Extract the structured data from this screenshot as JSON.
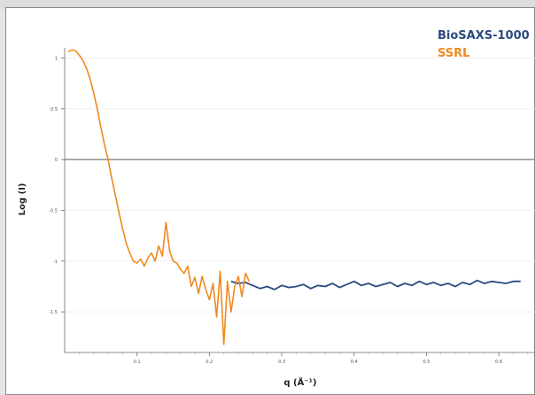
{
  "chart_data": {
    "type": "line",
    "xlabel": "q (Å⁻¹)",
    "ylabel": "Log (I)",
    "xlim": [
      0,
      0.65
    ],
    "ylim": [
      -1.9,
      1.1
    ],
    "x_ticks": [
      0.1,
      0.2,
      0.3,
      0.4,
      0.5,
      0.6
    ],
    "y_ticks": [
      1,
      0.5,
      0,
      -0.5,
      -1,
      -1.5
    ],
    "x_tick_labels": [
      "0.1",
      "0.2",
      "0.3",
      "0.4",
      "0.5",
      "0.6"
    ],
    "y_tick_labels": [
      "1",
      "0.5",
      "0",
      "-0.5",
      "-1",
      "-1.5"
    ],
    "legend_position": "top-right",
    "series": [
      {
        "name": "BioSAXS-1000",
        "color": "#2c4a7e",
        "points": [
          [
            0.23,
            -1.2
          ],
          [
            0.24,
            -1.22
          ],
          [
            0.25,
            -1.21
          ],
          [
            0.26,
            -1.24
          ],
          [
            0.27,
            -1.27
          ],
          [
            0.28,
            -1.25
          ],
          [
            0.29,
            -1.28
          ],
          [
            0.3,
            -1.24
          ],
          [
            0.31,
            -1.26
          ],
          [
            0.32,
            -1.25
          ],
          [
            0.33,
            -1.23
          ],
          [
            0.34,
            -1.27
          ],
          [
            0.35,
            -1.24
          ],
          [
            0.36,
            -1.25
          ],
          [
            0.37,
            -1.22
          ],
          [
            0.38,
            -1.26
          ],
          [
            0.39,
            -1.23
          ],
          [
            0.4,
            -1.2
          ],
          [
            0.41,
            -1.24
          ],
          [
            0.42,
            -1.22
          ],
          [
            0.43,
            -1.25
          ],
          [
            0.44,
            -1.23
          ],
          [
            0.45,
            -1.21
          ],
          [
            0.46,
            -1.25
          ],
          [
            0.47,
            -1.22
          ],
          [
            0.48,
            -1.24
          ],
          [
            0.49,
            -1.2
          ],
          [
            0.5,
            -1.23
          ],
          [
            0.51,
            -1.21
          ],
          [
            0.52,
            -1.24
          ],
          [
            0.53,
            -1.22
          ],
          [
            0.54,
            -1.25
          ],
          [
            0.55,
            -1.21
          ],
          [
            0.56,
            -1.23
          ],
          [
            0.57,
            -1.19
          ],
          [
            0.58,
            -1.22
          ],
          [
            0.59,
            -1.2
          ],
          [
            0.6,
            -1.21
          ],
          [
            0.61,
            -1.22
          ],
          [
            0.62,
            -1.2
          ],
          [
            0.63,
            -1.2
          ]
        ]
      },
      {
        "name": "SSRL",
        "color": "#ef8a1f",
        "points": [
          [
            0.005,
            1.06
          ],
          [
            0.01,
            1.08
          ],
          [
            0.015,
            1.07
          ],
          [
            0.02,
            1.03
          ],
          [
            0.025,
            0.98
          ],
          [
            0.03,
            0.9
          ],
          [
            0.035,
            0.8
          ],
          [
            0.04,
            0.66
          ],
          [
            0.045,
            0.5
          ],
          [
            0.05,
            0.32
          ],
          [
            0.055,
            0.15
          ],
          [
            0.06,
            0.0
          ],
          [
            0.065,
            -0.18
          ],
          [
            0.07,
            -0.35
          ],
          [
            0.075,
            -0.52
          ],
          [
            0.08,
            -0.68
          ],
          [
            0.085,
            -0.82
          ],
          [
            0.09,
            -0.92
          ],
          [
            0.095,
            -1.0
          ],
          [
            0.1,
            -1.02
          ],
          [
            0.105,
            -0.98
          ],
          [
            0.11,
            -1.05
          ],
          [
            0.115,
            -0.97
          ],
          [
            0.12,
            -0.92
          ],
          [
            0.125,
            -1.0
          ],
          [
            0.13,
            -0.85
          ],
          [
            0.135,
            -0.95
          ],
          [
            0.14,
            -0.62
          ],
          [
            0.145,
            -0.9
          ],
          [
            0.15,
            -1.0
          ],
          [
            0.155,
            -1.02
          ],
          [
            0.16,
            -1.08
          ],
          [
            0.165,
            -1.12
          ],
          [
            0.17,
            -1.05
          ],
          [
            0.175,
            -1.25
          ],
          [
            0.18,
            -1.16
          ],
          [
            0.185,
            -1.32
          ],
          [
            0.19,
            -1.15
          ],
          [
            0.195,
            -1.28
          ],
          [
            0.2,
            -1.38
          ],
          [
            0.205,
            -1.22
          ],
          [
            0.21,
            -1.55
          ],
          [
            0.215,
            -1.1
          ],
          [
            0.22,
            -1.82
          ],
          [
            0.225,
            -1.2
          ],
          [
            0.23,
            -1.5
          ],
          [
            0.235,
            -1.25
          ],
          [
            0.24,
            -1.15
          ],
          [
            0.245,
            -1.35
          ],
          [
            0.25,
            -1.12
          ],
          [
            0.255,
            -1.2
          ]
        ]
      }
    ]
  }
}
